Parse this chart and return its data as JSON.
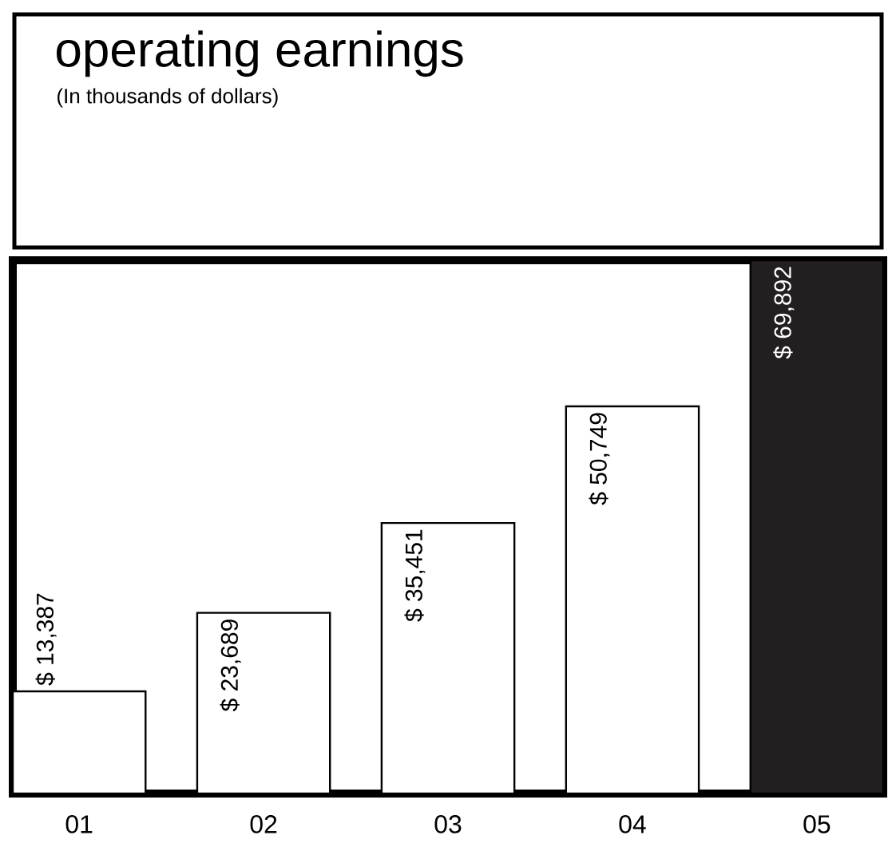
{
  "chart_data": {
    "type": "bar",
    "title": "operating earnings",
    "subtitle": "(In thousands of dollars)",
    "categories": [
      "01",
      "02",
      "03",
      "04",
      "05"
    ],
    "values": [
      13387,
      23689,
      35451,
      50749,
      69892
    ],
    "value_labels": [
      "$ 13,387",
      "$ 23,689",
      "$ 35,451",
      "$ 50,749",
      "$ 69,892"
    ],
    "colors": [
      "#ffffff",
      "#ffffff",
      "#ffffff",
      "#ffffff",
      "#231f20"
    ],
    "grid": false
  }
}
